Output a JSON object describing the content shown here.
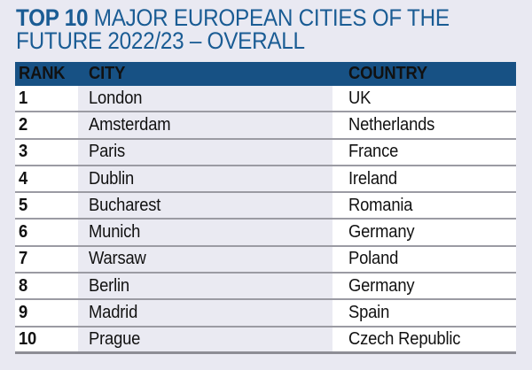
{
  "colors": {
    "page_bg": "#e9e9f2",
    "accent_blue": "#175184",
    "title_blue": "#1a5c94",
    "header_text": "#ffffff",
    "body_text": "#111111",
    "row_separator": "#9b9ba3",
    "shaded_column": "#eaeaf2"
  },
  "title": {
    "line1_bold": "TOP 10",
    "line1_rest": " MAJOR EUROPEAN CITIES OF THE",
    "line2": "FUTURE 2022/23 – OVERALL"
  },
  "table": {
    "columns": [
      "RANK",
      "CITY",
      "COUNTRY"
    ],
    "rows": [
      {
        "rank": "1",
        "city": "London",
        "country": "UK"
      },
      {
        "rank": "2",
        "city": "Amsterdam",
        "country": "Netherlands"
      },
      {
        "rank": "3",
        "city": "Paris",
        "country": "France"
      },
      {
        "rank": "4",
        "city": "Dublin",
        "country": "Ireland"
      },
      {
        "rank": "5",
        "city": "Bucharest",
        "country": "Romania"
      },
      {
        "rank": "6",
        "city": "Munich",
        "country": "Germany"
      },
      {
        "rank": "7",
        "city": "Warsaw",
        "country": "Poland"
      },
      {
        "rank": "8",
        "city": "Berlin",
        "country": "Germany"
      },
      {
        "rank": "9",
        "city": "Madrid",
        "country": "Spain"
      },
      {
        "rank": "10",
        "city": "Prague",
        "country": "Czech Republic"
      }
    ]
  },
  "chart_data": {
    "type": "table",
    "title": "TOP 10 MAJOR EUROPEAN CITIES OF THE FUTURE 2022/23 – OVERALL",
    "columns": [
      "RANK",
      "CITY",
      "COUNTRY"
    ],
    "rows": [
      [
        1,
        "London",
        "UK"
      ],
      [
        2,
        "Amsterdam",
        "Netherlands"
      ],
      [
        3,
        "Paris",
        "France"
      ],
      [
        4,
        "Dublin",
        "Ireland"
      ],
      [
        5,
        "Bucharest",
        "Romania"
      ],
      [
        6,
        "Munich",
        "Germany"
      ],
      [
        7,
        "Warsaw",
        "Poland"
      ],
      [
        8,
        "Berlin",
        "Germany"
      ],
      [
        9,
        "Madrid",
        "Spain"
      ],
      [
        10,
        "Prague",
        "Czech Republic"
      ]
    ]
  }
}
